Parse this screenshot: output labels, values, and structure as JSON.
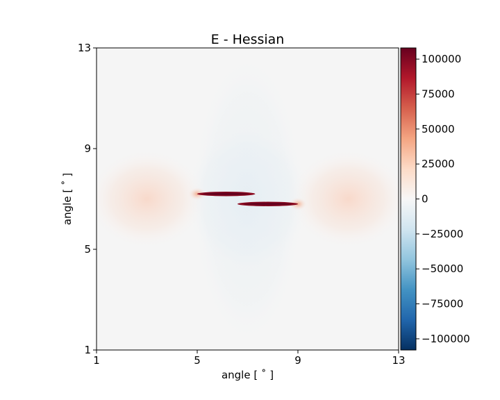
{
  "chart_data": {
    "type": "heatmap",
    "title": "E - Hessian",
    "xlabel": "angle [$^\\circ$]",
    "ylabel": "angle [$^\\circ$]",
    "xlabel_text": "angle [ ˚ ]",
    "ylabel_text": "angle [ ˚ ]",
    "xlim": [
      1,
      13
    ],
    "ylim": [
      1,
      13
    ],
    "x_ticks": [
      1,
      5,
      9,
      13
    ],
    "y_ticks": [
      1,
      5,
      9,
      13
    ],
    "colormap": "RdBu_r",
    "color_range": [
      -108000,
      108000
    ],
    "colorbar_ticks": [
      100000,
      75000,
      50000,
      25000,
      0,
      -25000,
      -50000,
      -75000,
      -100000
    ],
    "colorbar_tick_labels": [
      "100000",
      "75000",
      "50000",
      "25000",
      "0",
      "−25000",
      "−50000",
      "−75000",
      "−100000"
    ],
    "features": [
      {
        "kind": "high-streak",
        "x_range": [
          5.0,
          7.3
        ],
        "y": 7.2,
        "value": 105000
      },
      {
        "kind": "high-streak",
        "x_range": [
          6.6,
          9.0
        ],
        "y": 6.8,
        "value": 105000
      },
      {
        "kind": "mild-positive-lobe",
        "center": [
          3.0,
          7.0
        ],
        "value": 3000
      },
      {
        "kind": "mild-positive-lobe",
        "center": [
          11.0,
          7.0
        ],
        "value": 3000
      },
      {
        "kind": "mild-negative-region",
        "center": [
          7.0,
          7.0
        ],
        "value": -4000
      }
    ],
    "background_value": 0
  },
  "colors": {
    "zero": "#f7f7f7",
    "max": "#67001f",
    "min": "#053061"
  }
}
